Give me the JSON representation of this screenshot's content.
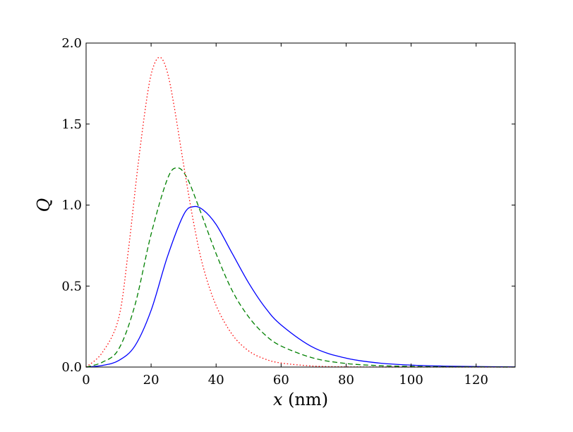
{
  "chart_data": {
    "type": "line",
    "title": "",
    "xlabel_var": "x",
    "xlabel_unit": " (nm)",
    "ylabel": "Q",
    "xlim": [
      0,
      132
    ],
    "ylim": [
      0,
      2.0
    ],
    "xticks": [
      0,
      20,
      40,
      60,
      80,
      100,
      120
    ],
    "xtick_labels": [
      "0",
      "20",
      "40",
      "60",
      "80",
      "100",
      "120"
    ],
    "yticks": [
      0,
      0.5,
      1.0,
      1.5,
      2.0
    ],
    "ytick_labels": [
      "0.0",
      "0.5",
      "1.0",
      "1.5",
      "2.0"
    ],
    "grid": false,
    "legend": false,
    "series": [
      {
        "color": "#0000ff",
        "style": "solid",
        "x": [
          0,
          5,
          10,
          15,
          20,
          25,
          30,
          33,
          36,
          40,
          45,
          50,
          55,
          60,
          70,
          80,
          90,
          100,
          110,
          120,
          132
        ],
        "y": [
          0.0,
          0.01,
          0.04,
          0.13,
          0.35,
          0.68,
          0.94,
          0.99,
          0.97,
          0.88,
          0.7,
          0.52,
          0.37,
          0.26,
          0.12,
          0.055,
          0.025,
          0.012,
          0.006,
          0.003,
          0.001
        ]
      },
      {
        "color": "#008000",
        "style": "dashed",
        "x": [
          0,
          5,
          10,
          15,
          20,
          25,
          28,
          31,
          35,
          40,
          45,
          50,
          55,
          60,
          70,
          80,
          90,
          100,
          110,
          120,
          132
        ],
        "y": [
          0.0,
          0.03,
          0.11,
          0.38,
          0.82,
          1.16,
          1.23,
          1.17,
          0.97,
          0.7,
          0.47,
          0.31,
          0.2,
          0.13,
          0.055,
          0.022,
          0.009,
          0.004,
          0.002,
          0.001,
          0.0
        ]
      },
      {
        "color": "#ff0000",
        "style": "dotted",
        "x": [
          0,
          5,
          10,
          13,
          16,
          19,
          21,
          23,
          25,
          27,
          30,
          33,
          36,
          40,
          45,
          50,
          55,
          60,
          70,
          80,
          90,
          100,
          110,
          132
        ],
        "y": [
          0.0,
          0.09,
          0.3,
          0.72,
          1.25,
          1.7,
          1.87,
          1.91,
          1.82,
          1.62,
          1.25,
          0.9,
          0.62,
          0.38,
          0.2,
          0.1,
          0.05,
          0.025,
          0.006,
          0.0015,
          0.0004,
          0.0001,
          0.0,
          0.0
        ]
      }
    ]
  }
}
